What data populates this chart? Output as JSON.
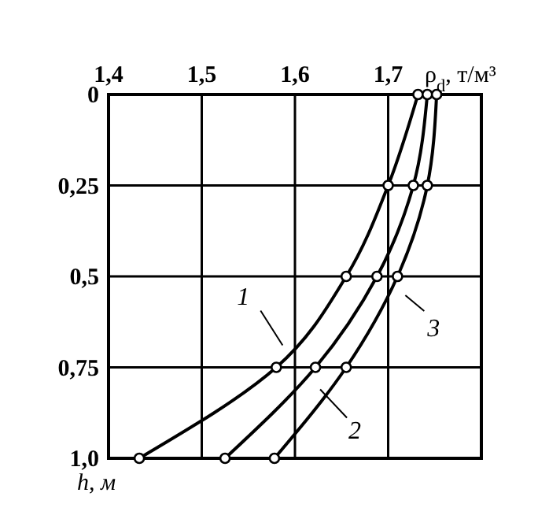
{
  "chart_data": {
    "type": "line",
    "xlabel": "ρ$_{d}$, т/м³",
    "ylabel": "h, м",
    "xlim": [
      1.4,
      1.8
    ],
    "xticks": [
      {
        "value": 1.4,
        "label": "1,4"
      },
      {
        "value": 1.5,
        "label": "1,5"
      },
      {
        "value": 1.6,
        "label": "1,6"
      },
      {
        "value": 1.7,
        "label": "1,7"
      }
    ],
    "ylim": [
      1.0,
      0
    ],
    "yticks": [
      {
        "value": 0,
        "label": "0"
      },
      {
        "value": 0.25,
        "label": "0,25"
      },
      {
        "value": 0.5,
        "label": "0,5"
      },
      {
        "value": 0.75,
        "label": "0,75"
      },
      {
        "value": 1.0,
        "label": "1,0"
      }
    ],
    "grid": true,
    "legend": "right",
    "marker": "circle",
    "line_style": "solid",
    "series": [
      {
        "name": "1",
        "color": "#000000",
        "x": [
          1.732,
          1.7,
          1.655,
          1.58,
          1.433
        ],
        "values": [
          0,
          0.25,
          0.5,
          0.75,
          1.0
        ]
      },
      {
        "name": "2",
        "color": "#000000",
        "x": [
          1.742,
          1.727,
          1.688,
          1.622,
          1.525
        ],
        "values": [
          0,
          0.25,
          0.5,
          0.75,
          1.0
        ]
      },
      {
        "name": "3",
        "color": "#000000",
        "x": [
          1.752,
          1.742,
          1.71,
          1.655,
          1.578
        ],
        "values": [
          0,
          0.25,
          0.5,
          0.75,
          1.0
        ]
      }
    ]
  }
}
